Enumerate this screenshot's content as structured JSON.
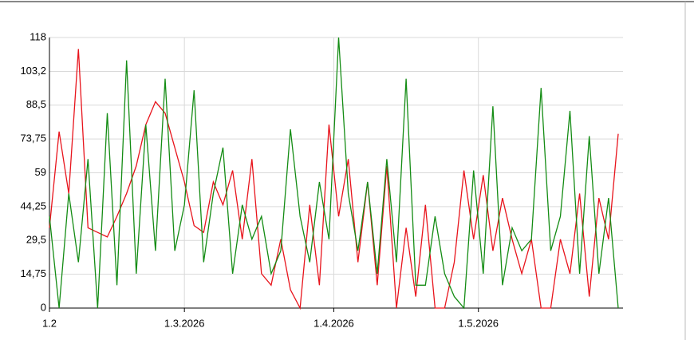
{
  "chart_data": {
    "type": "line",
    "x": [
      "1.2.2026",
      "3.2.2026",
      "5.2.2026",
      "7.2.2026",
      "9.2.2026",
      "11.2.2026",
      "13.2.2026",
      "15.2.2026",
      "17.2.2026",
      "19.2.2026",
      "21.2.2026",
      "23.2.2026",
      "25.2.2026",
      "27.2.2026",
      "1.3.2026",
      "3.3.2026",
      "5.3.2026",
      "7.3.2026",
      "9.3.2026",
      "11.3.2026",
      "13.3.2026",
      "15.3.2026",
      "17.3.2026",
      "19.3.2026",
      "21.3.2026",
      "23.3.2026",
      "25.3.2026",
      "27.3.2026",
      "29.3.2026",
      "31.3.2026",
      "2.4.2026",
      "4.4.2026",
      "6.4.2026",
      "8.4.2026",
      "10.4.2026",
      "12.4.2026",
      "14.4.2026",
      "16.4.2026",
      "18.4.2026",
      "20.4.2026",
      "22.4.2026",
      "24.4.2026",
      "26.4.2026",
      "28.4.2026",
      "30.4.2026",
      "2.5.2026",
      "4.5.2026",
      "6.5.2026",
      "8.5.2026",
      "10.5.2026",
      "12.5.2026",
      "14.5.2026",
      "16.5.2026",
      "18.5.2026",
      "20.5.2026",
      "22.5.2026",
      "24.5.2026",
      "26.5.2026",
      "28.5.2026",
      "30.5.2026"
    ],
    "series": [
      {
        "color": "#e8141c",
        "values": [
          35,
          77,
          50,
          113,
          35,
          33,
          31,
          40,
          50,
          62,
          80,
          90,
          85,
          70,
          55,
          36,
          33,
          55,
          45,
          60,
          30,
          65,
          15,
          10,
          30,
          8,
          0,
          45,
          10,
          80,
          40,
          65,
          20,
          55,
          10,
          62,
          0,
          35,
          5,
          45,
          0,
          0,
          20,
          60,
          30,
          58,
          25,
          48,
          30,
          15,
          30,
          0,
          0,
          30,
          15,
          50,
          5,
          48,
          30,
          76
        ]
      },
      {
        "color": "#148c14",
        "values": [
          40,
          0,
          50,
          20,
          65,
          0,
          85,
          10,
          108,
          15,
          80,
          25,
          100,
          25,
          45,
          95,
          20,
          50,
          70,
          15,
          45,
          30,
          40,
          15,
          25,
          78,
          40,
          20,
          55,
          30,
          118,
          50,
          25,
          55,
          15,
          65,
          20,
          100,
          10,
          10,
          40,
          15,
          5,
          0,
          60,
          15,
          88,
          10,
          35,
          25,
          30,
          96,
          25,
          40,
          86,
          15,
          75,
          15,
          48,
          0
        ]
      }
    ],
    "xlim": [
      "1.2.2026",
      "31.5.2026"
    ],
    "xticks": [
      {
        "value": "1.2.2026",
        "label": "1.2"
      },
      "1.3.2026",
      "1.4.2026",
      "1.5.2026"
    ],
    "ylim": [
      0,
      118
    ],
    "yticks": [
      0,
      {
        "value": 14.75,
        "label": "14,75"
      },
      {
        "value": 29.5,
        "label": "29,5"
      },
      {
        "value": 44.25,
        "label": "44,25"
      },
      59,
      {
        "value": 73.75,
        "label": "73,75"
      },
      {
        "value": 88.5,
        "label": "88,5"
      },
      {
        "value": 103.2,
        "label": "103,2"
      },
      118
    ],
    "grid": true
  }
}
